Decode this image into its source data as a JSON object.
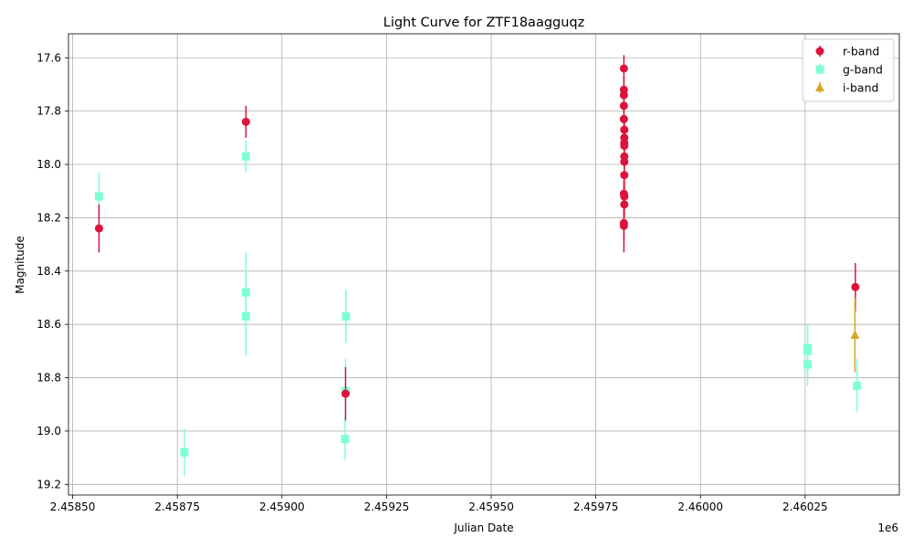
{
  "chart_data": {
    "type": "scatter",
    "title": "Light Curve for ZTF18aagguqz",
    "xlabel": "Julian Date",
    "ylabel": "Magnitude",
    "x_offset_label": "1e6",
    "xlim": [
      2458490,
      2460475
    ],
    "ylim": [
      19.24,
      17.51
    ],
    "y_inverted": true,
    "grid": true,
    "legend_position": "top-right",
    "x_ticks": [
      2458500,
      2458750,
      2459000,
      2459250,
      2459500,
      2459750,
      2460000,
      2460250
    ],
    "x_tick_labels": [
      "2.45850",
      "2.45875",
      "2.45900",
      "2.45925",
      "2.45950",
      "2.45975",
      "2.46000",
      "2.46025"
    ],
    "y_ticks": [
      17.6,
      17.8,
      18.0,
      18.2,
      18.4,
      18.6,
      18.8,
      19.0,
      19.2
    ],
    "y_tick_labels": [
      "17.6",
      "17.8",
      "18.0",
      "18.2",
      "18.4",
      "18.6",
      "18.8",
      "19.0",
      "19.2"
    ],
    "series": [
      {
        "name": "r-band",
        "color": "#dc143c",
        "marker": "circle",
        "points": [
          {
            "x": 2458563,
            "y": 18.24,
            "err": 0.09
          },
          {
            "x": 2458914,
            "y": 17.84,
            "err": 0.06
          },
          {
            "x": 2459152,
            "y": 18.86,
            "err": 0.1
          },
          {
            "x": 2459817,
            "y": 17.64,
            "err": 0.05
          },
          {
            "x": 2459817,
            "y": 17.72,
            "err": 0.05
          },
          {
            "x": 2459817,
            "y": 17.74,
            "err": 0.05
          },
          {
            "x": 2459817,
            "y": 17.78,
            "err": 0.05
          },
          {
            "x": 2459817,
            "y": 17.83,
            "err": 0.05
          },
          {
            "x": 2459818,
            "y": 17.87,
            "err": 0.05
          },
          {
            "x": 2459818,
            "y": 17.9,
            "err": 0.05
          },
          {
            "x": 2459818,
            "y": 17.92,
            "err": 0.05
          },
          {
            "x": 2459818,
            "y": 17.93,
            "err": 0.05
          },
          {
            "x": 2459818,
            "y": 17.97,
            "err": 0.05
          },
          {
            "x": 2459818,
            "y": 17.99,
            "err": 0.05
          },
          {
            "x": 2459818,
            "y": 18.04,
            "err": 0.05
          },
          {
            "x": 2459817,
            "y": 18.11,
            "err": 0.05
          },
          {
            "x": 2459818,
            "y": 18.12,
            "err": 0.05
          },
          {
            "x": 2459818,
            "y": 18.15,
            "err": 0.05
          },
          {
            "x": 2459817,
            "y": 18.22,
            "err": 0.07
          },
          {
            "x": 2459817,
            "y": 18.23,
            "err": 0.1
          },
          {
            "x": 2460370,
            "y": 18.46,
            "err": 0.09
          }
        ]
      },
      {
        "name": "g-band",
        "color": "#7fffd4",
        "marker": "square",
        "points": [
          {
            "x": 2458563,
            "y": 18.12,
            "err": 0.09
          },
          {
            "x": 2458767,
            "y": 19.08,
            "err": 0.09
          },
          {
            "x": 2458914,
            "y": 17.97,
            "err": 0.06
          },
          {
            "x": 2458914,
            "y": 18.48,
            "err": 0.15
          },
          {
            "x": 2458914,
            "y": 18.57,
            "err": 0.15
          },
          {
            "x": 2459153,
            "y": 18.57,
            "err": 0.1
          },
          {
            "x": 2459152,
            "y": 18.85,
            "err": 0.12
          },
          {
            "x": 2459151,
            "y": 19.03,
            "err": 0.08
          },
          {
            "x": 2460256,
            "y": 18.69,
            "err": 0.09
          },
          {
            "x": 2460256,
            "y": 18.7,
            "err": 0.09
          },
          {
            "x": 2460256,
            "y": 18.75,
            "err": 0.08
          },
          {
            "x": 2460374,
            "y": 18.83,
            "err": 0.1
          }
        ]
      },
      {
        "name": "i-band",
        "color": "#daa520",
        "marker": "triangle",
        "points": [
          {
            "x": 2460369,
            "y": 18.64,
            "err": 0.14
          }
        ]
      }
    ]
  }
}
